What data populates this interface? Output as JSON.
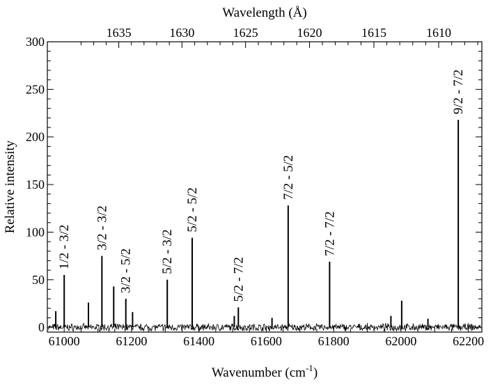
{
  "chart_data": {
    "type": "line",
    "title": "",
    "xlabel": "Wavenumber (cm",
    "xlabel_superscript": "-1",
    "xlabel_suffix": ")",
    "ylabel": "Relative intensity",
    "top_axis_label": "Wavelength (Å)",
    "xlim": [
      60950,
      62240
    ],
    "ylim": [
      -5,
      300
    ],
    "x_ticks": [
      61000,
      61200,
      61400,
      61600,
      61800,
      62000,
      62200
    ],
    "y_ticks": [
      0,
      50,
      100,
      150,
      200,
      250,
      300
    ],
    "top_ticks": [
      1635,
      1630,
      1625,
      1620,
      1615,
      1610
    ],
    "grid": false,
    "legend": "none",
    "line_color": "#000000",
    "noise_amplitude": 3,
    "peaks": [
      {
        "x": 60975,
        "y": 17,
        "label": ""
      },
      {
        "x": 61000,
        "y": 55,
        "label": "1/2 - 3/2"
      },
      {
        "x": 61072,
        "y": 26,
        "label": ""
      },
      {
        "x": 61112,
        "y": 75,
        "label": "3/2 - 3/2"
      },
      {
        "x": 61147,
        "y": 43,
        "label": ""
      },
      {
        "x": 61183,
        "y": 30,
        "label": "3/2 - 5/2"
      },
      {
        "x": 61203,
        "y": 16,
        "label": ""
      },
      {
        "x": 61306,
        "y": 50,
        "label": "5/2 - 3/2"
      },
      {
        "x": 61380,
        "y": 94,
        "label": "5/2 - 5/2"
      },
      {
        "x": 61505,
        "y": 12,
        "label": ""
      },
      {
        "x": 61517,
        "y": 21,
        "label": "5/2 - 7/2"
      },
      {
        "x": 61617,
        "y": 10,
        "label": ""
      },
      {
        "x": 61665,
        "y": 128,
        "label": "7/2 - 5/2"
      },
      {
        "x": 61788,
        "y": 69,
        "label": "7/2 - 7/2"
      },
      {
        "x": 61970,
        "y": 12,
        "label": ""
      },
      {
        "x": 62002,
        "y": 28,
        "label": ""
      },
      {
        "x": 62080,
        "y": 9,
        "label": ""
      },
      {
        "x": 62170,
        "y": 218,
        "label": "9/2 - 7/2"
      }
    ]
  }
}
